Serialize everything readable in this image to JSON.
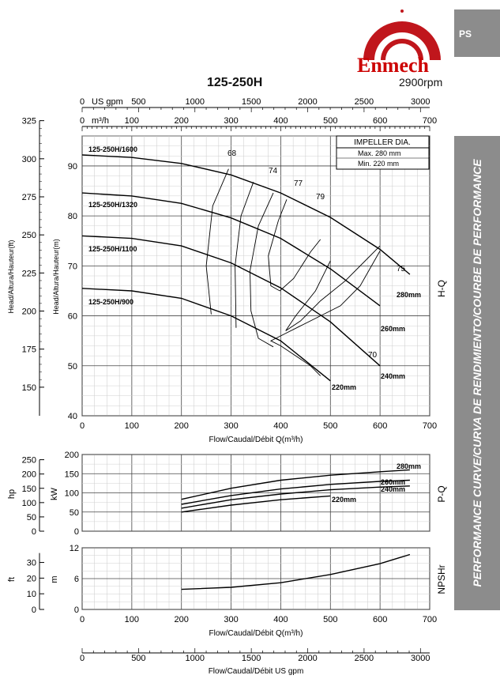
{
  "header": {
    "tab": "PS",
    "brand": "Enmech",
    "rpm": "2900rpm",
    "model": "125-250H",
    "side_text": "PERFORMANCE CURVE/CURVA DE RENDIMIENTO/COURBE DE PERFORMANCE",
    "logo_color": "#c0161c",
    "panel_color": "#8c8c8c"
  },
  "chart_data": [
    {
      "type": "line",
      "name": "hq",
      "section_label": "H-Q",
      "xlabel": "Flow/Caudal/Débit Q(m³/h)",
      "ylabel_m": "Head/Altura/Hauteur(m)",
      "ylabel_ft": "Head/Altura/Hauteur(ft)",
      "xlim": [
        0,
        700
      ],
      "ylim": [
        40,
        96
      ],
      "x_ticks": [
        0,
        100,
        200,
        300,
        400,
        500,
        600,
        700
      ],
      "y_ticks_m": [
        40,
        50,
        60,
        70,
        80,
        90
      ],
      "y_ticks_ft": [
        150,
        175,
        200,
        225,
        250,
        275,
        300,
        325
      ],
      "top_axis_m3h_label": "m³/h",
      "top_axis_m3h_ticks": [
        0,
        100,
        200,
        300,
        400,
        500,
        600,
        700
      ],
      "top_axis_gpm_label": "US gpm",
      "top_axis_gpm_ticks": [
        0,
        500,
        1000,
        1500,
        2000,
        2500,
        3000
      ],
      "impeller": {
        "title": "IMPELLER DIA.",
        "max": "Max.  280 mm",
        "min": "Min.  220 mm"
      },
      "series": [
        {
          "name": "280mm",
          "label": "125-250H/1600",
          "x": [
            0,
            100,
            200,
            300,
            400,
            500,
            600,
            660
          ],
          "y": [
            92.2,
            91.7,
            90.5,
            88.2,
            84.6,
            79.7,
            73.3,
            68.3
          ]
        },
        {
          "name": "260mm",
          "label": "125-250H/1320",
          "x": [
            0,
            100,
            200,
            300,
            400,
            500,
            600
          ],
          "y": [
            84.6,
            84.0,
            82.5,
            79.6,
            75.5,
            69.4,
            62.0
          ]
        },
        {
          "name": "240mm",
          "label": "125-250H/1100",
          "x": [
            0,
            100,
            200,
            300,
            400,
            500,
            600
          ],
          "y": [
            76.0,
            75.5,
            74.0,
            70.6,
            65.6,
            58.8,
            50.0
          ]
        },
        {
          "name": "220mm",
          "label": "125-250H/900",
          "x": [
            0,
            100,
            200,
            300,
            400,
            500
          ],
          "y": [
            65.5,
            65.0,
            63.5,
            60.0,
            55.0,
            47.0
          ]
        }
      ],
      "efficiency": [
        {
          "label": "68",
          "x": [
            295,
            263,
            250,
            260
          ],
          "y": [
            89.4,
            82,
            70,
            60.3
          ]
        },
        {
          "label": "74",
          "x": [
            345,
            320,
            308,
            310
          ],
          "y": [
            86.8,
            80,
            70,
            57.6
          ]
        },
        {
          "label": "77",
          "x": [
            385,
            355,
            338,
            340,
            355,
            385
          ],
          "y": [
            84.6,
            78,
            69,
            61,
            55.5,
            53.8
          ]
        },
        {
          "label": "79",
          "x": [
            412,
            395,
            375,
            380,
            398,
            426,
            460,
            480
          ],
          "y": [
            83.3,
            79,
            72,
            66,
            65,
            67.5,
            72.8,
            75.3
          ]
        },
        {
          "label": "75",
          "x": [
            600,
            570,
            530,
            480,
            440,
            410,
            430,
            470,
            490,
            500
          ],
          "y": [
            74,
            71,
            67,
            63,
            59,
            57,
            60,
            65,
            69,
            71
          ]
        },
        {
          "label": "70",
          "x": [
            480,
            460,
            430,
            400,
            380,
            400,
            440,
            480,
            520,
            560,
            600
          ],
          "y": [
            48,
            50,
            52,
            54,
            55,
            56,
            58,
            60,
            62,
            66,
            73
          ]
        }
      ]
    },
    {
      "type": "line",
      "name": "power",
      "section_label": "P-Q",
      "ylabel_kw": "kW",
      "ylabel_hp": "hp",
      "xlim": [
        0,
        700
      ],
      "ylim": [
        0,
        200
      ],
      "y_ticks_kw": [
        0,
        50,
        100,
        150,
        200
      ],
      "y_ticks_hp": [
        0,
        50,
        100,
        150,
        200,
        250
      ],
      "series": [
        {
          "name": "280mm",
          "x": [
            200,
            300,
            400,
            500,
            600,
            660
          ],
          "y": [
            83,
            112,
            133,
            146,
            155,
            160
          ]
        },
        {
          "name": "260mm",
          "x": [
            200,
            300,
            400,
            500,
            600,
            660
          ],
          "y": [
            70,
            93,
            110,
            122,
            130,
            133
          ]
        },
        {
          "name": "240mm",
          "x": [
            200,
            300,
            400,
            500,
            600,
            660
          ],
          "y": [
            60,
            82,
            97,
            108,
            115,
            118
          ]
        },
        {
          "name": "220mm",
          "x": [
            200,
            300,
            400,
            500
          ],
          "y": [
            50,
            68,
            82,
            92
          ]
        }
      ]
    },
    {
      "type": "line",
      "name": "npsh",
      "section_label": "NPSHr",
      "xlabel": "Flow/Caudal/Débit Q(m³/h)",
      "ylabel_m": "m",
      "ylabel_ft": "ft",
      "xlim": [
        0,
        700
      ],
      "ylim": [
        0,
        12
      ],
      "y_ticks_m": [
        0,
        6,
        12
      ],
      "y_ticks_ft": [
        0,
        10,
        20,
        30
      ],
      "series": [
        {
          "name": "NPSHr",
          "x": [
            200,
            300,
            400,
            500,
            600,
            660
          ],
          "y": [
            3.9,
            4.3,
            5.2,
            6.8,
            8.9,
            10.7
          ]
        }
      ]
    }
  ],
  "bottom_axis": {
    "label": "Flow/Caudal/Débit  US gpm",
    "ticks": [
      0,
      500,
      1000,
      1500,
      2000,
      2500,
      3000
    ]
  }
}
